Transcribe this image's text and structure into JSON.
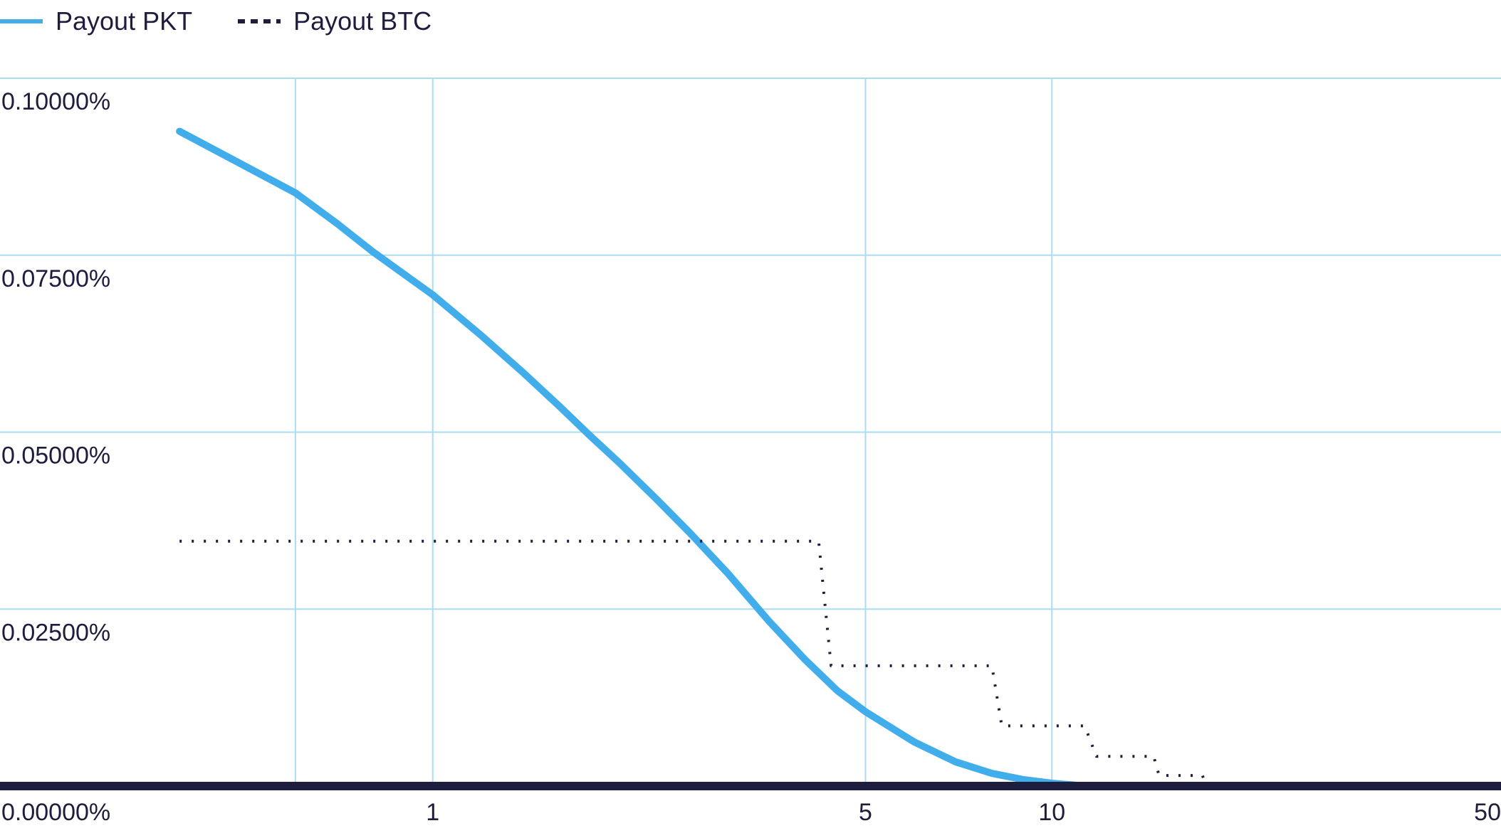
{
  "colors": {
    "pkt_line": "#41adeb",
    "btc_line": "#1f1d3d",
    "grid": "#a8def0",
    "baseline": "#1f1d3d",
    "text": "#1f1d3d"
  },
  "legend": {
    "position": "top-left",
    "items": [
      {
        "label": "Payout PKT",
        "style": "solid"
      },
      {
        "label": "Payout BTC",
        "style": "dotted"
      }
    ]
  },
  "chart_data": {
    "type": "line",
    "x_scale": "log",
    "grid": true,
    "xlim": [
      0.2,
      50
    ],
    "ylim": [
      0,
      0.1
    ],
    "x_ticks": [
      {
        "value": 0.2,
        "label": ""
      },
      {
        "value": 0.6,
        "label": ""
      },
      {
        "value": 1,
        "label": "1"
      },
      {
        "value": 5,
        "label": "5"
      },
      {
        "value": 10,
        "label": "10"
      },
      {
        "value": 50,
        "label": "50"
      }
    ],
    "y_ticks": [
      {
        "value": 0,
        "label": "0.00000%"
      },
      {
        "value": 0.025,
        "label": "0.02500%"
      },
      {
        "value": 0.05,
        "label": "0.05000%"
      },
      {
        "value": 0.075,
        "label": "0.07500%"
      },
      {
        "value": 0.1,
        "label": "0.10000%"
      }
    ],
    "series": [
      {
        "name": "Payout PKT",
        "style": "solid",
        "points": [
          [
            0.39,
            0.0925
          ],
          [
            0.5,
            0.0875
          ],
          [
            0.6,
            0.0838
          ],
          [
            0.7,
            0.0795
          ],
          [
            0.8,
            0.0755
          ],
          [
            1.0,
            0.0694
          ],
          [
            1.2,
            0.0636
          ],
          [
            1.4,
            0.0584
          ],
          [
            1.6,
            0.0537
          ],
          [
            1.8,
            0.0494
          ],
          [
            2.0,
            0.0457
          ],
          [
            2.3,
            0.0405
          ],
          [
            2.6,
            0.0358
          ],
          [
            3.0,
            0.03
          ],
          [
            3.5,
            0.0232
          ],
          [
            4.0,
            0.0178
          ],
          [
            4.5,
            0.0135
          ],
          [
            5.0,
            0.0105
          ],
          [
            6.0,
            0.0062
          ],
          [
            7.0,
            0.0034
          ],
          [
            8.0,
            0.0018
          ],
          [
            9.0,
            0.0009
          ],
          [
            10.0,
            0.0004
          ],
          [
            11.0,
            0.0001
          ],
          [
            12.0,
            0.0
          ]
        ]
      },
      {
        "name": "Payout BTC",
        "style": "dotted",
        "points": [
          [
            0.39,
            0.0346
          ],
          [
            4.2,
            0.0346
          ],
          [
            4.4,
            0.017
          ],
          [
            8.0,
            0.017
          ],
          [
            8.3,
            0.0085
          ],
          [
            11.3,
            0.0085
          ],
          [
            11.8,
            0.0042
          ],
          [
            14.6,
            0.0042
          ],
          [
            14.9,
            0.0015
          ],
          [
            17.5,
            0.0015
          ],
          [
            17.8,
            0.0
          ]
        ]
      }
    ]
  }
}
